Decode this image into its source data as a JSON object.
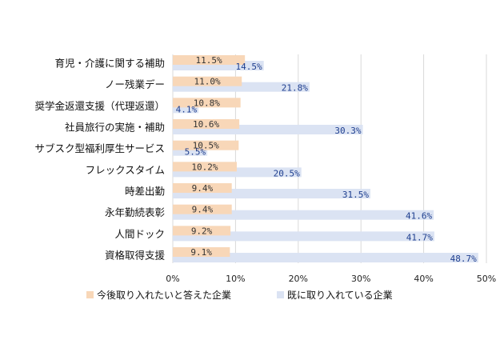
{
  "chart_data": {
    "type": "bar",
    "orientation": "horizontal",
    "title": "",
    "xlabel": "",
    "ylabel": "",
    "xlim": [
      0,
      50
    ],
    "grid": true,
    "legend_position": "bottom",
    "x_ticks": [
      "0%",
      "10%",
      "20%",
      "30%",
      "40%",
      "50%"
    ],
    "x_tick_values": [
      0,
      10,
      20,
      30,
      40,
      50
    ],
    "categories": [
      "育児・介護に関する補助",
      "ノー残業デー",
      "奨学金返還支援（代理返還）",
      "社員旅行の実施・補助",
      "サブスク型福利厚生サービス",
      "フレックスタイム",
      "時差出勤",
      "永年勤続表彰",
      "人間ドック",
      "資格取得支援"
    ],
    "series": [
      {
        "name": "今後取り入れたいと答えた企業",
        "color": "#f8d7b8",
        "values": [
          11.5,
          11.0,
          10.8,
          10.6,
          10.5,
          10.2,
          9.4,
          9.4,
          9.2,
          9.1
        ],
        "labels": [
          "11.5%",
          "11.0%",
          "10.8%",
          "10.6%",
          "10.5%",
          "10.2%",
          "9.4%",
          "9.4%",
          "9.2%",
          "9.1%"
        ]
      },
      {
        "name": "既に取り入れている企業",
        "color": "#dbe3f3",
        "values": [
          14.5,
          21.8,
          4.1,
          30.3,
          5.5,
          20.5,
          31.5,
          41.6,
          41.7,
          48.7
        ],
        "labels": [
          "14.5%",
          "21.8%",
          "4.1%",
          "30.3%",
          "5.5%",
          "20.5%",
          "31.5%",
          "41.6%",
          "41.7%",
          "48.7%"
        ]
      }
    ]
  },
  "colors": {
    "grid": "#d9d9d9",
    "label_a": "#333333",
    "label_b": "#1f3f8f"
  }
}
